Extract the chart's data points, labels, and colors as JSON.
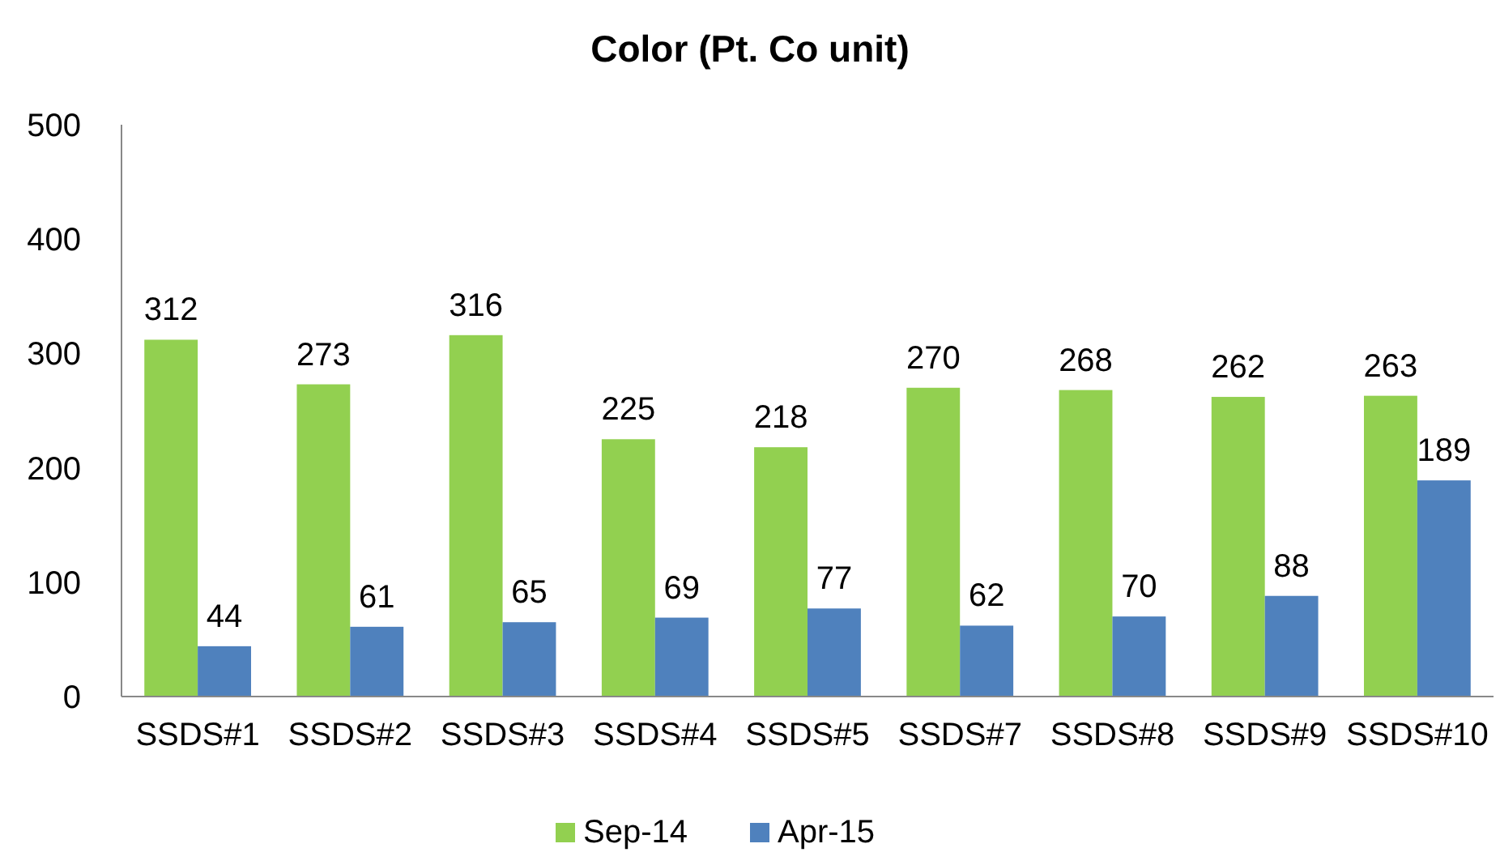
{
  "chart_data": {
    "type": "bar",
    "title": "Color (Pt. Co unit)",
    "categories": [
      "SSDS#1",
      "SSDS#2",
      "SSDS#3",
      "SSDS#4",
      "SSDS#5",
      "SSDS#7",
      "SSDS#8",
      "SSDS#9",
      "SSDS#10"
    ],
    "series": [
      {
        "name": "Sep-14",
        "color": "#92d050",
        "values": [
          312,
          273,
          316,
          225,
          218,
          270,
          268,
          262,
          263
        ]
      },
      {
        "name": "Apr-15",
        "color": "#4f81bd",
        "values": [
          44,
          61,
          65,
          69,
          77,
          62,
          70,
          88,
          189
        ]
      }
    ],
    "ylim": [
      0,
      500
    ],
    "yticks": [
      0,
      100,
      200,
      300,
      400,
      500
    ],
    "data_labels": true,
    "legend": "bottom"
  }
}
